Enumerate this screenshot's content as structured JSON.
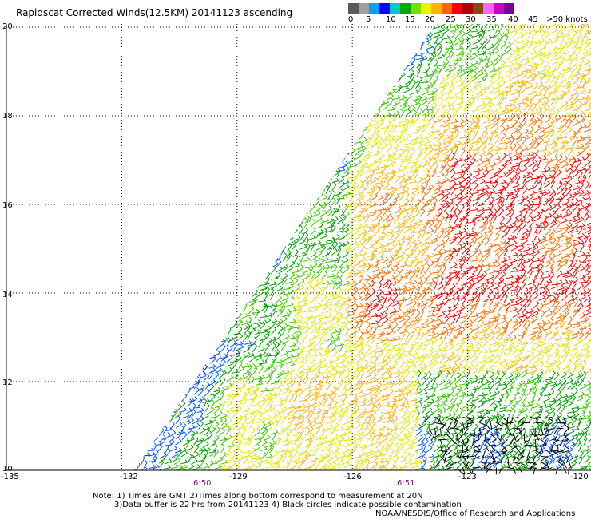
{
  "header": {
    "title": "Rapidscat Corrected Winds(12.5KM) 20141123 ascending"
  },
  "legend": {
    "swatches": [
      "#5a5a5a",
      "#a0a0a0",
      "#00a0ff",
      "#0000ff",
      "#00c8c8",
      "#00aa00",
      "#78e000",
      "#f0f000",
      "#ffb400",
      "#ff6400",
      "#ff0000",
      "#b40000",
      "#8c4614",
      "#ff64ff",
      "#c800c8",
      "#780096"
    ],
    "labels": [
      "0",
      "5",
      "10",
      "15",
      "20",
      "25",
      "30",
      "35",
      "40",
      "45",
      ">50 knots"
    ]
  },
  "axes": {
    "y_labels": [
      "20",
      "18",
      "16",
      "14",
      "12",
      "10"
    ],
    "x_labels": [
      "-135",
      "-132",
      "-129",
      "-126",
      "-123",
      "-120"
    ]
  },
  "times": [
    "6:50",
    "6:51"
  ],
  "footer": {
    "line1": "Note: 1) Times are GMT 2)Times along bottom correspond to measurement at 20N",
    "line2": "3)Data buffer is 22 hrs from 20141123 4) Black circles indicate possible contamination",
    "line3": "NOAA/NESDIS/Office of Research and Applications"
  },
  "map_data": {
    "lon_range": [
      -135,
      -120
    ],
    "lat_range": [
      10,
      20
    ],
    "gridlines": true,
    "swath_left_edge": [
      {
        "lon": -131.6,
        "lat": 10.3
      },
      {
        "lon": -124.8,
        "lat": 20
      }
    ],
    "wind_speed_knots_by_region": [
      {
        "region": "western swath edge",
        "speed": 15
      },
      {
        "region": "south-west swath",
        "speed": 10
      },
      {
        "region": "swath centre",
        "speed": 22
      },
      {
        "region": "east of -122, 13-17N",
        "speed": 30
      },
      {
        "region": "south-east corner",
        "speed": 12
      }
    ],
    "contamination": {
      "lon": [
        -124,
        -120.3
      ],
      "lat": [
        10,
        11.2
      ]
    }
  }
}
